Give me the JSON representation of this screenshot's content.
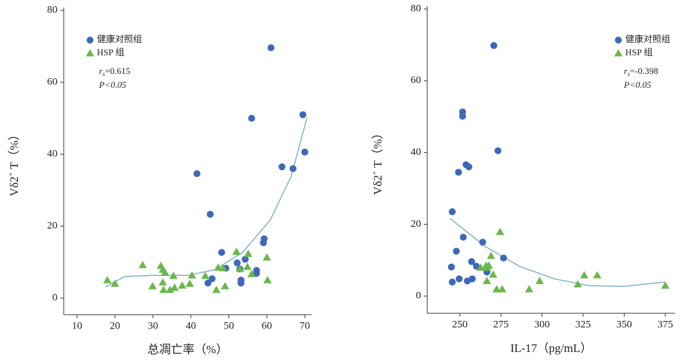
{
  "chart_data": [
    {
      "type": "scatter",
      "xlabel": "总凋亡率（%）",
      "ylabel": {
        "main": "Vδ2",
        "sup": "+",
        "rest": " T（%）"
      },
      "xlim": [
        6.5,
        71.8
      ],
      "ylim": [
        -4.6,
        80
      ],
      "xticks": [
        10,
        20,
        30,
        40,
        50,
        60,
        70
      ],
      "yticks": [
        0,
        20,
        40,
        60,
        80
      ],
      "legend": "top-left",
      "series": [
        {
          "name": "健康对照组",
          "color": "#3f68b8",
          "marker": "circle",
          "x": [
            41.6,
            45.1,
            56.0,
            61.1,
            69.5,
            70.0,
            64.0,
            66.9,
            59.3,
            59.1,
            48.1,
            54.3,
            52.2,
            49.2,
            52.9,
            57.3,
            57.3,
            45.6,
            44.5,
            53.2,
            53.2
          ],
          "values": [
            34.6,
            23.3,
            50,
            69.6,
            51,
            40.6,
            36.5,
            36,
            16.5,
            15.4,
            12.7,
            10.8,
            9.8,
            8.3,
            8.1,
            7.7,
            6.9,
            5.4,
            4.2,
            5,
            4.2
          ]
        },
        {
          "name": "HSP 组",
          "color": "#6ab84a",
          "marker": "triangle",
          "x": [
            18,
            20,
            27.3,
            29.9,
            32.1,
            32.6,
            32.6,
            33.2,
            32.8,
            34.5,
            35.7,
            35.4,
            37.7,
            39.7,
            40.3,
            43.8,
            46.7,
            47.2,
            48.5,
            49,
            52,
            52.9,
            54.9,
            55.1,
            56,
            60,
            60.2
          ],
          "values": [
            5,
            4,
            9.2,
            3.3,
            9,
            7.9,
            4.4,
            7.1,
            2.3,
            2.3,
            2.9,
            6.2,
            3.5,
            4,
            6.3,
            6.2,
            2.3,
            8.5,
            8.3,
            3.3,
            12.9,
            8.1,
            8.7,
            12.3,
            6.7,
            11.3,
            5
          ]
        }
      ],
      "fit": {
        "color": "#7ab0c8",
        "x": [
          17.5,
          22.6,
          29.9,
          39,
          46.3,
          53.6,
          60.9,
          66.4,
          70.6
        ],
        "values": [
          3.1,
          6,
          6.3,
          6.3,
          7.9,
          12.7,
          21.7,
          33.8,
          50.2
        ]
      },
      "stat": {
        "symbol": "r",
        "subscript": "s",
        "value_text": "=0.615",
        "p_text": "P<0.05"
      }
    },
    {
      "type": "scatter",
      "xlabel": "IL-17（pg/mL）",
      "ylabel": {
        "main": "Vδ2",
        "sup": "+",
        "rest": " T（%）"
      },
      "xlim": [
        230.2,
        381
      ],
      "ylim": [
        -4.8,
        80
      ],
      "xticks": [
        250,
        275,
        300,
        325,
        350,
        375
      ],
      "yticks": [
        0,
        20,
        40,
        60,
        80
      ],
      "legend": "top-right",
      "series": [
        {
          "name": "健康对照组",
          "color": "#3f68b8",
          "marker": "circle",
          "x": [
            245.4,
            244.9,
            245.4,
            247.9,
            249.6,
            249.2,
            251.7,
            251.7,
            252.1,
            253.8,
            255.5,
            254.6,
            257.2,
            257.6,
            260.1,
            263.9,
            266.5,
            270.7,
            273.2,
            276.6
          ],
          "values": [
            23.5,
            8.1,
            3.9,
            12.5,
            4.8,
            34.5,
            51.3,
            50.1,
            16.4,
            36.6,
            36,
            4.2,
            9.6,
            4.8,
            8.3,
            15,
            6.7,
            69.8,
            40.5,
            10.6
          ]
        },
        {
          "name": "HSP 组",
          "color": "#6ab84a",
          "marker": "triangle",
          "x": [
            262.7,
            266,
            266.5,
            267.7,
            266.5,
            269,
            270.3,
            272.4,
            274.5,
            275.8,
            292.2,
            298.6,
            321.8,
            325.7,
            333.6,
            375
          ],
          "values": [
            7.9,
            8.5,
            4.2,
            8.5,
            7.9,
            11.2,
            6,
            1.9,
            17.9,
            1.9,
            1.9,
            4.2,
            3.3,
            5.8,
            5.8,
            2.9
          ]
        }
      ],
      "fit": {
        "color": "#7ab0c8",
        "x": [
          244.1,
          265.2,
          286.3,
          307.4,
          328.5,
          349.7,
          375
        ],
        "values": [
          21.6,
          13.9,
          8.3,
          4.8,
          2.9,
          2.7,
          3.9
        ]
      },
      "stat": {
        "symbol": "r",
        "subscript": "s",
        "value_text": "=-0.398",
        "p_text": "P<0.05"
      }
    }
  ]
}
